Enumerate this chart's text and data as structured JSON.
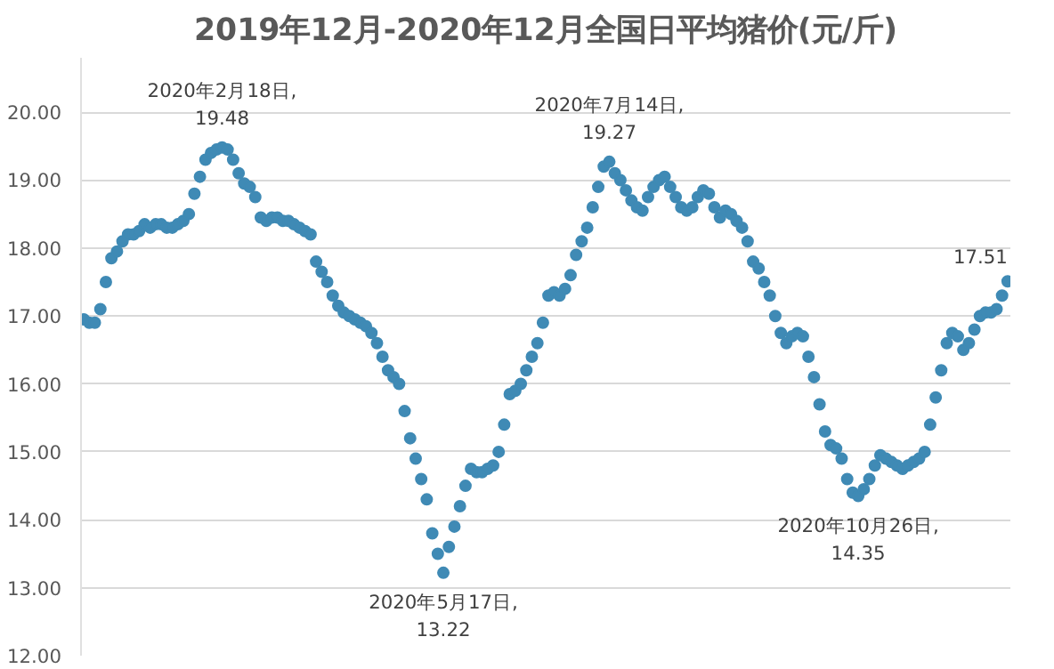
{
  "chart_data": {
    "type": "scatter",
    "title": "2019年12月-2020年12月全国日平均猪价(元/斤)",
    "categories": [
      null,
      null,
      null,
      null,
      null,
      null,
      null,
      null,
      null,
      null,
      null,
      null,
      null,
      null,
      null,
      null,
      null,
      null,
      null,
      null,
      null,
      null,
      null,
      null,
      null,
      null,
      null,
      null,
      null,
      null,
      null,
      null,
      null,
      null,
      null,
      null,
      null,
      null,
      null,
      null,
      null,
      null,
      null,
      null,
      null,
      null,
      null,
      null,
      null,
      null,
      null,
      null,
      null,
      null,
      null,
      null,
      null,
      null,
      null,
      null,
      null,
      null,
      null,
      null,
      null,
      null,
      null,
      null,
      null,
      null,
      null,
      null,
      null,
      null,
      null,
      null,
      null,
      null,
      null,
      null,
      null,
      null,
      null,
      null,
      null,
      null,
      null,
      null,
      null,
      null,
      null,
      null,
      null,
      null,
      null,
      null,
      null,
      null,
      null,
      null,
      null,
      null,
      null,
      null,
      null,
      null,
      null,
      null,
      null,
      null,
      null,
      null,
      null,
      null,
      null,
      null,
      null,
      null,
      null,
      null,
      null,
      null,
      null,
      null,
      null,
      null,
      null,
      null,
      null,
      null,
      null,
      null,
      null,
      null,
      null,
      null,
      null,
      null,
      null,
      null,
      null,
      null,
      null,
      null,
      null,
      null,
      null,
      null,
      null,
      null,
      null,
      null,
      null,
      null,
      null,
      null,
      null,
      null,
      null,
      null,
      null,
      null,
      null,
      null,
      null,
      null,
      null,
      null
    ],
    "series": [
      {
        "color": "#3f8ab5",
        "values": [
          16.95,
          16.9,
          16.9,
          17.1,
          17.5,
          17.85,
          17.95,
          18.1,
          18.2,
          18.2,
          18.25,
          18.35,
          18.3,
          18.35,
          18.35,
          18.3,
          18.3,
          18.35,
          18.4,
          18.5,
          18.8,
          19.05,
          19.3,
          19.4,
          19.45,
          19.48,
          19.45,
          19.3,
          19.1,
          18.95,
          18.9,
          18.75,
          18.45,
          18.4,
          18.45,
          18.45,
          18.4,
          18.4,
          18.35,
          18.3,
          18.25,
          18.2,
          17.8,
          17.65,
          17.5,
          17.3,
          17.15,
          17.05,
          17.0,
          16.95,
          16.9,
          16.85,
          16.75,
          16.6,
          16.4,
          16.2,
          16.1,
          16.0,
          15.6,
          15.2,
          14.9,
          14.6,
          14.3,
          13.8,
          13.5,
          13.22,
          13.6,
          13.9,
          14.2,
          14.5,
          14.75,
          14.7,
          14.7,
          14.75,
          14.8,
          15.0,
          15.4,
          15.85,
          15.9,
          16.0,
          16.2,
          16.4,
          16.6,
          16.9,
          17.3,
          17.35,
          17.3,
          17.4,
          17.6,
          17.9,
          18.1,
          18.3,
          18.6,
          18.9,
          19.2,
          19.27,
          19.1,
          19.0,
          18.85,
          18.7,
          18.6,
          18.55,
          18.75,
          18.9,
          19.0,
          19.05,
          18.9,
          18.75,
          18.6,
          18.55,
          18.6,
          18.75,
          18.85,
          18.8,
          18.6,
          18.45,
          18.55,
          18.5,
          18.4,
          18.3,
          18.1,
          17.8,
          17.7,
          17.5,
          17.3,
          17.0,
          16.75,
          16.6,
          16.7,
          16.75,
          16.7,
          16.4,
          16.1,
          15.7,
          15.3,
          15.1,
          15.05,
          14.9,
          14.6,
          14.4,
          14.35,
          14.45,
          14.6,
          14.8,
          14.95,
          14.9,
          14.85,
          14.8,
          14.75,
          14.8,
          14.85,
          14.9,
          15.0,
          15.4,
          15.8,
          16.2,
          16.6,
          16.75,
          16.7,
          16.5,
          16.6,
          16.8,
          17.0,
          17.05,
          17.05,
          17.1,
          17.3,
          17.51
        ]
      }
    ],
    "annotations": [
      {
        "text": "2020年2月18日,\n19.48",
        "y": 19.48
      },
      {
        "text": "2020年5月17日,\n13.22",
        "y": 13.22
      },
      {
        "text": "2020年7月14日,\n19.27",
        "y": 19.27
      },
      {
        "text": "2020年10月26日,\n14.35",
        "y": 14.35
      },
      "17.51"
    ],
    "ylim": [
      12,
      20.8
    ],
    "yticks": [
      {
        "value": 12,
        "label": "12.00"
      },
      {
        "value": 13,
        "label": "13.00"
      },
      {
        "value": 14,
        "label": "14.00"
      },
      {
        "value": 15,
        "label": "15.00"
      },
      {
        "value": 16,
        "label": "16.00"
      },
      {
        "value": 17,
        "label": "17.00"
      },
      {
        "value": 18,
        "label": "18.00"
      },
      {
        "value": 19,
        "label": "19.00"
      },
      {
        "value": 20,
        "label": "20.00"
      }
    ],
    "grid": "y",
    "marker": "circle"
  }
}
